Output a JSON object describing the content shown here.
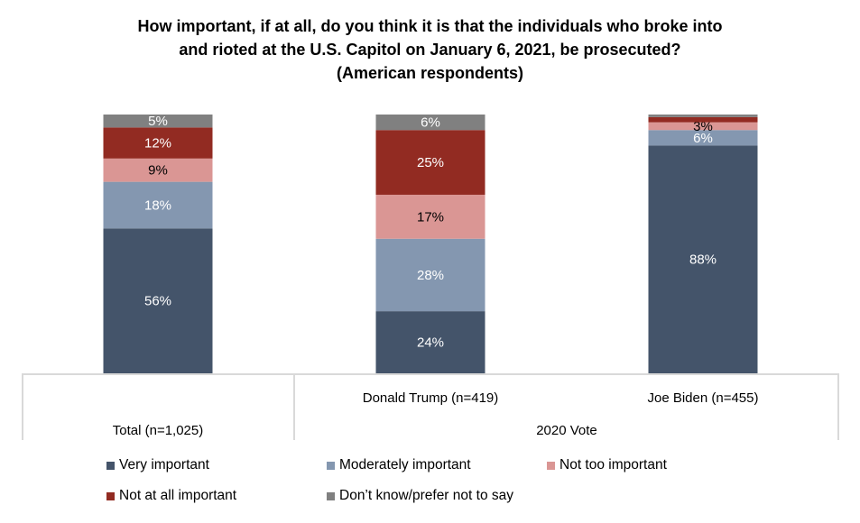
{
  "chart_data": {
    "type": "bar",
    "stacked": true,
    "title_lines": [
      "How important, if at all, do you think it is that the individuals who broke into",
      "and rioted at the U.S. Capitol on January 6, 2021, be prosecuted?",
      "(American respondents)"
    ],
    "categories": [
      "Total (n=1,025)",
      "Donald Trump (n=419)",
      "Joe Biden (n=455)"
    ],
    "category_group_labels": [
      {
        "label": "Total (n=1,025)",
        "categories": [
          "Total (n=1,025)"
        ]
      },
      {
        "label": "2020 Vote",
        "categories": [
          "Donald Trump (n=419)",
          "Joe Biden (n=455)"
        ]
      }
    ],
    "ylim": [
      0,
      100
    ],
    "grid": false,
    "legend_position": "bottom",
    "series": [
      {
        "name": "Very important",
        "color": "#44546A",
        "label_color": "#FFFFFF",
        "values": [
          56,
          24,
          88
        ],
        "labels": [
          "56%",
          "24%",
          "88%"
        ]
      },
      {
        "name": "Moderately important",
        "color": "#8497B0",
        "label_color": "#FFFFFF",
        "values": [
          18,
          28,
          6
        ],
        "labels": [
          "18%",
          "28%",
          "6%"
        ]
      },
      {
        "name": "Not too important",
        "color": "#DA9694",
        "label_color": "#000000",
        "values": [
          9,
          17,
          3
        ],
        "labels": [
          "9%",
          "17%",
          "3%"
        ]
      },
      {
        "name": "Not at all important",
        "color": "#922B22",
        "label_color": "#FFFFFF",
        "values": [
          12,
          25,
          2
        ],
        "labels": [
          "12%",
          "25%",
          ""
        ]
      },
      {
        "name": "Don’t know/prefer not to say",
        "color": "#808080",
        "label_color": "#FFFFFF",
        "values": [
          5,
          6,
          1
        ],
        "labels": [
          "5%",
          "6%",
          ""
        ]
      }
    ]
  }
}
